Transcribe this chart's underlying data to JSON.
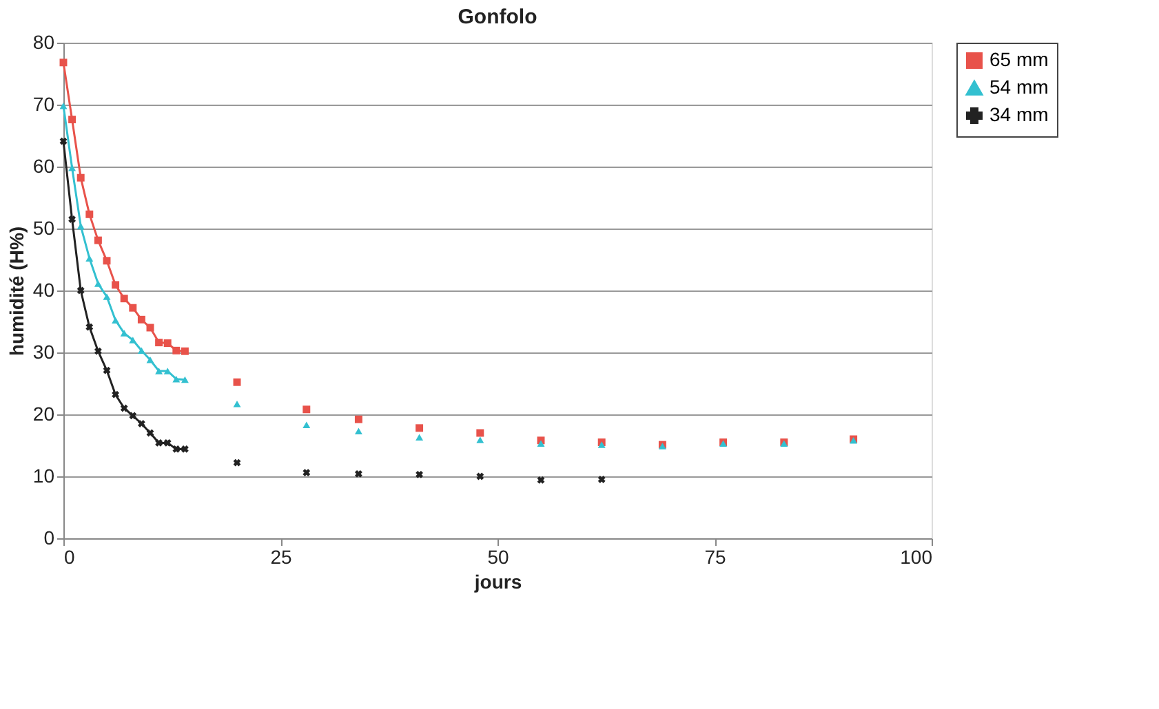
{
  "chart_data": {
    "type": "line",
    "title": "Gonfolo",
    "xlabel": "jours",
    "ylabel": "humidité (H%)",
    "x": [
      0,
      1,
      2,
      3,
      4,
      5,
      6,
      7,
      8,
      9,
      10,
      11,
      12,
      13,
      14,
      17,
      20,
      24,
      28,
      31,
      34,
      37,
      41,
      44,
      48,
      51,
      55,
      58,
      62,
      65,
      69,
      72,
      76,
      79,
      83,
      87,
      91
    ],
    "series": [
      {
        "name": "65 mm",
        "color": "#e8524a",
        "marker": "square",
        "values": [
          76.8,
          67.6,
          58.2,
          52.3,
          48.1,
          44.8,
          40.9,
          38.7,
          37.2,
          35.3,
          34.0,
          31.6,
          31.5,
          30.3,
          30.2,
          null,
          25.2,
          null,
          20.8,
          null,
          19.2,
          null,
          17.8,
          null,
          17.0,
          null,
          15.8,
          null,
          15.5,
          null,
          15.1,
          null,
          15.5,
          null,
          15.5,
          null,
          16.0
        ]
      },
      {
        "name": "54 mm",
        "color": "#33c0d0",
        "marker": "triangle",
        "values": [
          69.8,
          59.8,
          50.4,
          45.2,
          41.1,
          39.0,
          35.2,
          33.1,
          32.0,
          30.3,
          28.8,
          27.0,
          27.0,
          25.7,
          25.6,
          null,
          21.7,
          null,
          18.3,
          null,
          17.3,
          null,
          16.3,
          null,
          15.9,
          null,
          15.3,
          null,
          15.1,
          null,
          14.9,
          null,
          15.3,
          null,
          15.3,
          null,
          15.8
        ]
      },
      {
        "name": "34 mm",
        "color": "#222222",
        "marker": "cross",
        "values": [
          64.1,
          51.5,
          40.0,
          34.1,
          30.2,
          27.1,
          23.2,
          21.0,
          19.8,
          18.5,
          17.0,
          15.4,
          15.4,
          14.4,
          14.4,
          null,
          12.2,
          null,
          10.6,
          null,
          10.4,
          null,
          10.3,
          null,
          10.0,
          null,
          9.4,
          null,
          9.5,
          null,
          null,
          null,
          null,
          null,
          null,
          null,
          null
        ]
      }
    ],
    "xlim": [
      0,
      100
    ],
    "xticks": [
      0,
      25,
      50,
      75,
      100
    ],
    "ylim": [
      0,
      80
    ],
    "yticks": [
      0,
      10,
      20,
      30,
      40,
      50,
      60,
      70,
      80
    ],
    "grid": "y",
    "legend": "right",
    "line_style": "solid"
  }
}
